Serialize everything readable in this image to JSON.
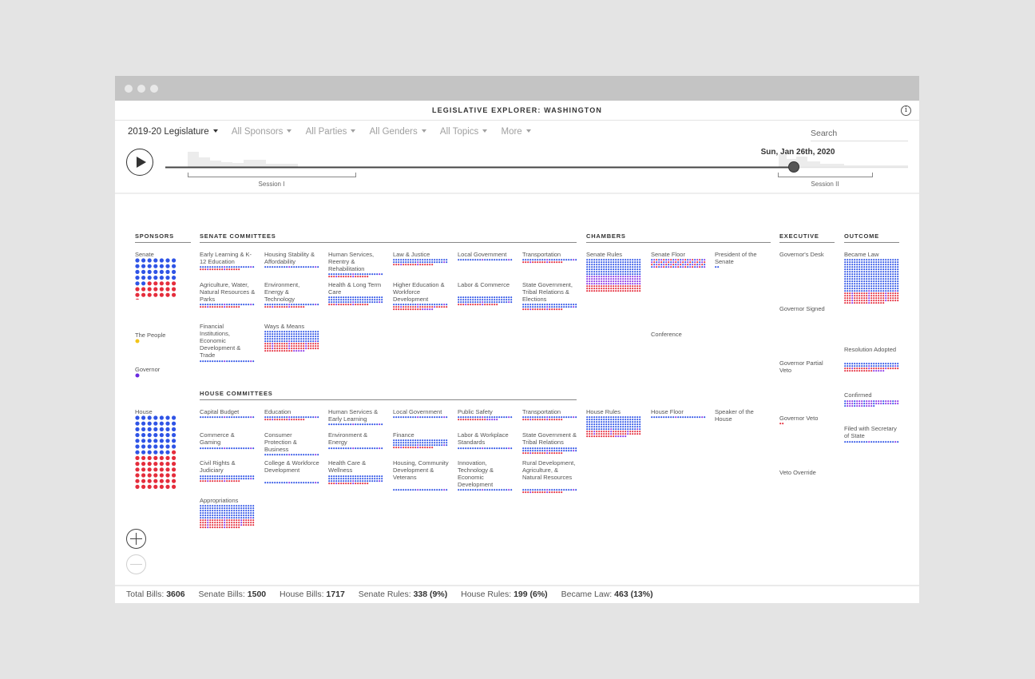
{
  "window_title": "LEGISLATIVE EXPLORER: WASHINGTON",
  "info_icon": "info-icon",
  "filters": [
    {
      "label": "2019-20 Legislature",
      "key": "legislature"
    },
    {
      "label": "All Sponsors",
      "key": "sponsors"
    },
    {
      "label": "All Parties",
      "key": "parties"
    },
    {
      "label": "All Genders",
      "key": "genders"
    },
    {
      "label": "All Topics",
      "key": "topics"
    },
    {
      "label": "More",
      "key": "more"
    }
  ],
  "search": {
    "placeholder": "Search"
  },
  "timeline": {
    "current_date": "Sun, Jan 26th, 2020",
    "sessions": [
      "Session I",
      "Session II"
    ],
    "progress": 0.85,
    "play_icon": "play-icon"
  },
  "colors": {
    "democrat": "#2f54e6",
    "republican": "#e52d3c",
    "mixed": "#8b35e6",
    "people": "#f2c418",
    "governor": "#6a2be0"
  },
  "sections": {
    "sponsors": "SPONSORS",
    "senate_committees": "SENATE COMMITTEES",
    "house_committees": "HOUSE COMMITTEES",
    "chambers": "CHAMBERS",
    "executive": "EXECUTIVE",
    "outcome": "OUTCOME"
  },
  "sponsors": [
    {
      "label": "Senate",
      "key": "senate"
    },
    {
      "label": "The People",
      "key": "people"
    },
    {
      "label": "Governor",
      "key": "governor"
    },
    {
      "label": "House",
      "key": "house"
    }
  ],
  "senate_committees": [
    "Early Learning & K-12 Education",
    "Housing Stability & Affordability",
    "Human Services, Reentry & Rehabilitation",
    "Law & Justice",
    "Local Government",
    "Transportation",
    "Agriculture, Water, Natural Resources & Parks",
    "Environment, Energy & Technology",
    "Health & Long Term Care",
    "Higher Education & Workforce Development",
    "Labor & Commerce",
    "State Government, Tribal Relations & Elections",
    "Financial Institutions, Economic Development & Trade",
    "Ways & Means"
  ],
  "house_committees": [
    "Capital Budget",
    "Education",
    "Human Services & Early Learning",
    "Local Government",
    "Public Safety",
    "Transportation",
    "Commerce & Gaming",
    "Consumer Protection & Business",
    "Environment & Energy",
    "Finance",
    "Labor & Workplace Standards",
    "State Government & Tribal Relations",
    "Civil Rights & Judiciary",
    "College & Workforce Development",
    "Health Care & Wellness",
    "Housing, Community Development & Veterans",
    "Innovation, Technology & Economic Development",
    "Rural Development, Agriculture, & Natural Resources",
    "Appropriations"
  ],
  "chambers": [
    "Senate Rules",
    "Senate Floor",
    "President of the Senate",
    "Conference",
    "House Rules",
    "House Floor",
    "Speaker of the House"
  ],
  "executive": [
    "Governor's Desk",
    "Governor Signed",
    "Governor Partial Veto",
    "Governor Veto",
    "Veto Override"
  ],
  "outcome": [
    "Became Law",
    "Resolution Adopted",
    "Confirmed",
    "Filed with Secretary of State"
  ],
  "stats": [
    {
      "label": "Total Bills:",
      "value": "3606"
    },
    {
      "label": "Senate Bills:",
      "value": "1500"
    },
    {
      "label": "House Bills:",
      "value": "1717"
    },
    {
      "label": "Senate Rules:",
      "value": "338 (9%)"
    },
    {
      "label": "House Rules:",
      "value": "199 (6%)"
    },
    {
      "label": "Became Law:",
      "value": "463 (13%)"
    }
  ],
  "zoom": {
    "in_icon": "zoom-in-icon",
    "out_icon": "zoom-out-icon"
  }
}
